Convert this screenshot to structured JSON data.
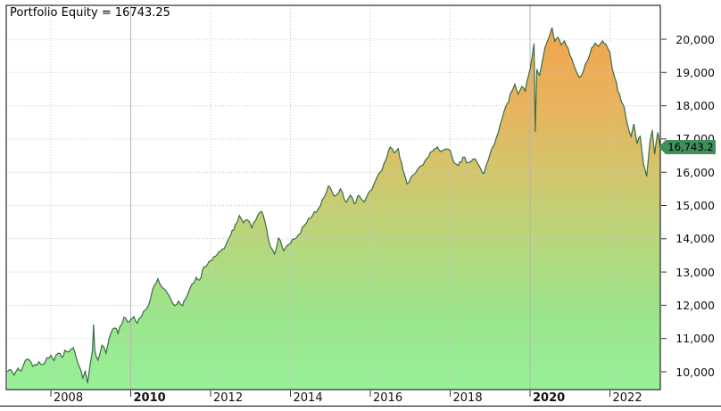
{
  "chart": {
    "title": "Portfolio Equity = 16743.25",
    "current_value_label": "16,743.2",
    "colors": {
      "line": "#3A6B46",
      "badge_bg": "#3F8F5B",
      "badge_text": "#000000",
      "grid_dotted": "#C9C9C9",
      "grid_solid": "#B5B5B5",
      "plot_border": "#000000",
      "tick": "#333333",
      "fill_gradient_top_to_bottom": [
        "#F2A44C",
        "#E9B25C",
        "#D3C56C",
        "#B6D77C",
        "#9AE58C",
        "#98F098"
      ]
    }
  },
  "chart_data": {
    "type": "area",
    "title": "Portfolio Equity = 16743.25",
    "final_value": 16743.25,
    "final_value_label": "16,743.2",
    "xlabel": "",
    "ylabel": "",
    "grid": true,
    "legend": false,
    "xlim": [
      2006.9,
      2023.3
    ],
    "ylim_visible": [
      10000,
      20000
    ],
    "y_ticks": [
      {
        "value": 10000,
        "label": "10,000"
      },
      {
        "value": 11000,
        "label": "11,000"
      },
      {
        "value": 12000,
        "label": "12,000"
      },
      {
        "value": 13000,
        "label": "13,000"
      },
      {
        "value": 14000,
        "label": "14,000"
      },
      {
        "value": 15000,
        "label": "15,000"
      },
      {
        "value": 16000,
        "label": "16,000"
      },
      {
        "value": 17000,
        "label": "17,000"
      },
      {
        "value": 18000,
        "label": "18,000"
      },
      {
        "value": 19000,
        "label": "19,000"
      },
      {
        "value": 20000,
        "label": "20,000"
      }
    ],
    "x_ticks": [
      {
        "year": 2008,
        "label": "2008",
        "bold": false
      },
      {
        "year": 2010,
        "label": "2010",
        "bold": true
      },
      {
        "year": 2012,
        "label": "2012",
        "bold": false
      },
      {
        "year": 2014,
        "label": "2014",
        "bold": false
      },
      {
        "year": 2016,
        "label": "2016",
        "bold": false
      },
      {
        "year": 2018,
        "label": "2018",
        "bold": false
      },
      {
        "year": 2020,
        "label": "2020",
        "bold": true
      },
      {
        "year": 2022,
        "label": "2022",
        "bold": false
      }
    ],
    "series": [
      {
        "name": "Portfolio Equity",
        "points": [
          [
            2006.91,
            10000
          ],
          [
            2007.0,
            10060
          ],
          [
            2007.08,
            9900
          ],
          [
            2007.18,
            10110
          ],
          [
            2007.26,
            10030
          ],
          [
            2007.36,
            10340
          ],
          [
            2007.44,
            10375
          ],
          [
            2007.55,
            10160
          ],
          [
            2007.7,
            10300
          ],
          [
            2007.8,
            10220
          ],
          [
            2008.0,
            10500
          ],
          [
            2008.08,
            10340
          ],
          [
            2008.18,
            10560
          ],
          [
            2008.28,
            10430
          ],
          [
            2008.35,
            10650
          ],
          [
            2008.45,
            10600
          ],
          [
            2008.56,
            10720
          ],
          [
            2008.64,
            10400
          ],
          [
            2008.7,
            10190
          ],
          [
            2008.8,
            9810
          ],
          [
            2008.86,
            10010
          ],
          [
            2008.92,
            9660
          ],
          [
            2008.98,
            10200
          ],
          [
            2009.04,
            10600
          ],
          [
            2009.07,
            11420
          ],
          [
            2009.1,
            10650
          ],
          [
            2009.18,
            10350
          ],
          [
            2009.28,
            10800
          ],
          [
            2009.38,
            10560
          ],
          [
            2009.5,
            11150
          ],
          [
            2009.6,
            11320
          ],
          [
            2009.68,
            11150
          ],
          [
            2009.83,
            11640
          ],
          [
            2009.92,
            11500
          ],
          [
            2010.0,
            11580
          ],
          [
            2010.08,
            11660
          ],
          [
            2010.16,
            11460
          ],
          [
            2010.28,
            11690
          ],
          [
            2010.4,
            11900
          ],
          [
            2010.5,
            12225
          ],
          [
            2010.6,
            12610
          ],
          [
            2010.68,
            12800
          ],
          [
            2010.78,
            12550
          ],
          [
            2010.88,
            12440
          ],
          [
            2011.0,
            12180
          ],
          [
            2011.1,
            11990
          ],
          [
            2011.2,
            12125
          ],
          [
            2011.3,
            11990
          ],
          [
            2011.42,
            12305
          ],
          [
            2011.53,
            12630
          ],
          [
            2011.64,
            12840
          ],
          [
            2011.72,
            12760
          ],
          [
            2011.84,
            13160
          ],
          [
            2012.0,
            13330
          ],
          [
            2012.12,
            13470
          ],
          [
            2012.25,
            13620
          ],
          [
            2012.38,
            13800
          ],
          [
            2012.5,
            14100
          ],
          [
            2012.62,
            14420
          ],
          [
            2012.72,
            14700
          ],
          [
            2012.82,
            14480
          ],
          [
            2012.92,
            14570
          ],
          [
            2013.03,
            14330
          ],
          [
            2013.18,
            14700
          ],
          [
            2013.28,
            14820
          ],
          [
            2013.4,
            14300
          ],
          [
            2013.5,
            13760
          ],
          [
            2013.6,
            13540
          ],
          [
            2013.7,
            14020
          ],
          [
            2013.83,
            13640
          ],
          [
            2013.94,
            13820
          ],
          [
            2014.05,
            13980
          ],
          [
            2014.2,
            14120
          ],
          [
            2014.35,
            14400
          ],
          [
            2014.5,
            14620
          ],
          [
            2014.65,
            14800
          ],
          [
            2014.8,
            15180
          ],
          [
            2014.95,
            15590
          ],
          [
            2015.1,
            15280
          ],
          [
            2015.25,
            15500
          ],
          [
            2015.4,
            15100
          ],
          [
            2015.5,
            15310
          ],
          [
            2015.6,
            15050
          ],
          [
            2015.72,
            15300
          ],
          [
            2015.85,
            15110
          ],
          [
            2016.0,
            15450
          ],
          [
            2016.12,
            15720
          ],
          [
            2016.25,
            16000
          ],
          [
            2016.38,
            16350
          ],
          [
            2016.5,
            16760
          ],
          [
            2016.6,
            16580
          ],
          [
            2016.7,
            16710
          ],
          [
            2016.82,
            16050
          ],
          [
            2016.92,
            15650
          ],
          [
            2017.05,
            15900
          ],
          [
            2017.18,
            16080
          ],
          [
            2017.32,
            16220
          ],
          [
            2017.46,
            16460
          ],
          [
            2017.6,
            16700
          ],
          [
            2017.68,
            16760
          ],
          [
            2017.76,
            16620
          ],
          [
            2017.88,
            16700
          ],
          [
            2018.0,
            16660
          ],
          [
            2018.1,
            16270
          ],
          [
            2018.2,
            16200
          ],
          [
            2018.32,
            16450
          ],
          [
            2018.45,
            16290
          ],
          [
            2018.58,
            16400
          ],
          [
            2018.72,
            16200
          ],
          [
            2018.85,
            15970
          ],
          [
            2018.95,
            16350
          ],
          [
            2019.05,
            16730
          ],
          [
            2019.16,
            17050
          ],
          [
            2019.3,
            17600
          ],
          [
            2019.42,
            18050
          ],
          [
            2019.55,
            18450
          ],
          [
            2019.62,
            18650
          ],
          [
            2019.7,
            18350
          ],
          [
            2019.8,
            18580
          ],
          [
            2019.88,
            18440
          ],
          [
            2019.96,
            18900
          ],
          [
            2020.05,
            19450
          ],
          [
            2020.1,
            19870
          ],
          [
            2020.13,
            17220
          ],
          [
            2020.17,
            19100
          ],
          [
            2020.24,
            18920
          ],
          [
            2020.33,
            19480
          ],
          [
            2020.42,
            19900
          ],
          [
            2020.5,
            20160
          ],
          [
            2020.55,
            20350
          ],
          [
            2020.62,
            19940
          ],
          [
            2020.7,
            20060
          ],
          [
            2020.78,
            19830
          ],
          [
            2020.86,
            19950
          ],
          [
            2020.95,
            19740
          ],
          [
            2021.05,
            19400
          ],
          [
            2021.15,
            19050
          ],
          [
            2021.24,
            18850
          ],
          [
            2021.33,
            19020
          ],
          [
            2021.44,
            19350
          ],
          [
            2021.54,
            19730
          ],
          [
            2021.63,
            19880
          ],
          [
            2021.72,
            19790
          ],
          [
            2021.82,
            19950
          ],
          [
            2021.9,
            19850
          ],
          [
            2022.0,
            19600
          ],
          [
            2022.06,
            19100
          ],
          [
            2022.12,
            18850
          ],
          [
            2022.2,
            18430
          ],
          [
            2022.28,
            18150
          ],
          [
            2022.36,
            17950
          ],
          [
            2022.44,
            17430
          ],
          [
            2022.53,
            17080
          ],
          [
            2022.6,
            17450
          ],
          [
            2022.68,
            16850
          ],
          [
            2022.76,
            17080
          ],
          [
            2022.84,
            16250
          ],
          [
            2022.92,
            15870
          ],
          [
            2023.0,
            16890
          ],
          [
            2023.06,
            17270
          ],
          [
            2023.12,
            16540
          ],
          [
            2023.2,
            17200
          ],
          [
            2023.26,
            16743.25
          ]
        ]
      }
    ]
  }
}
